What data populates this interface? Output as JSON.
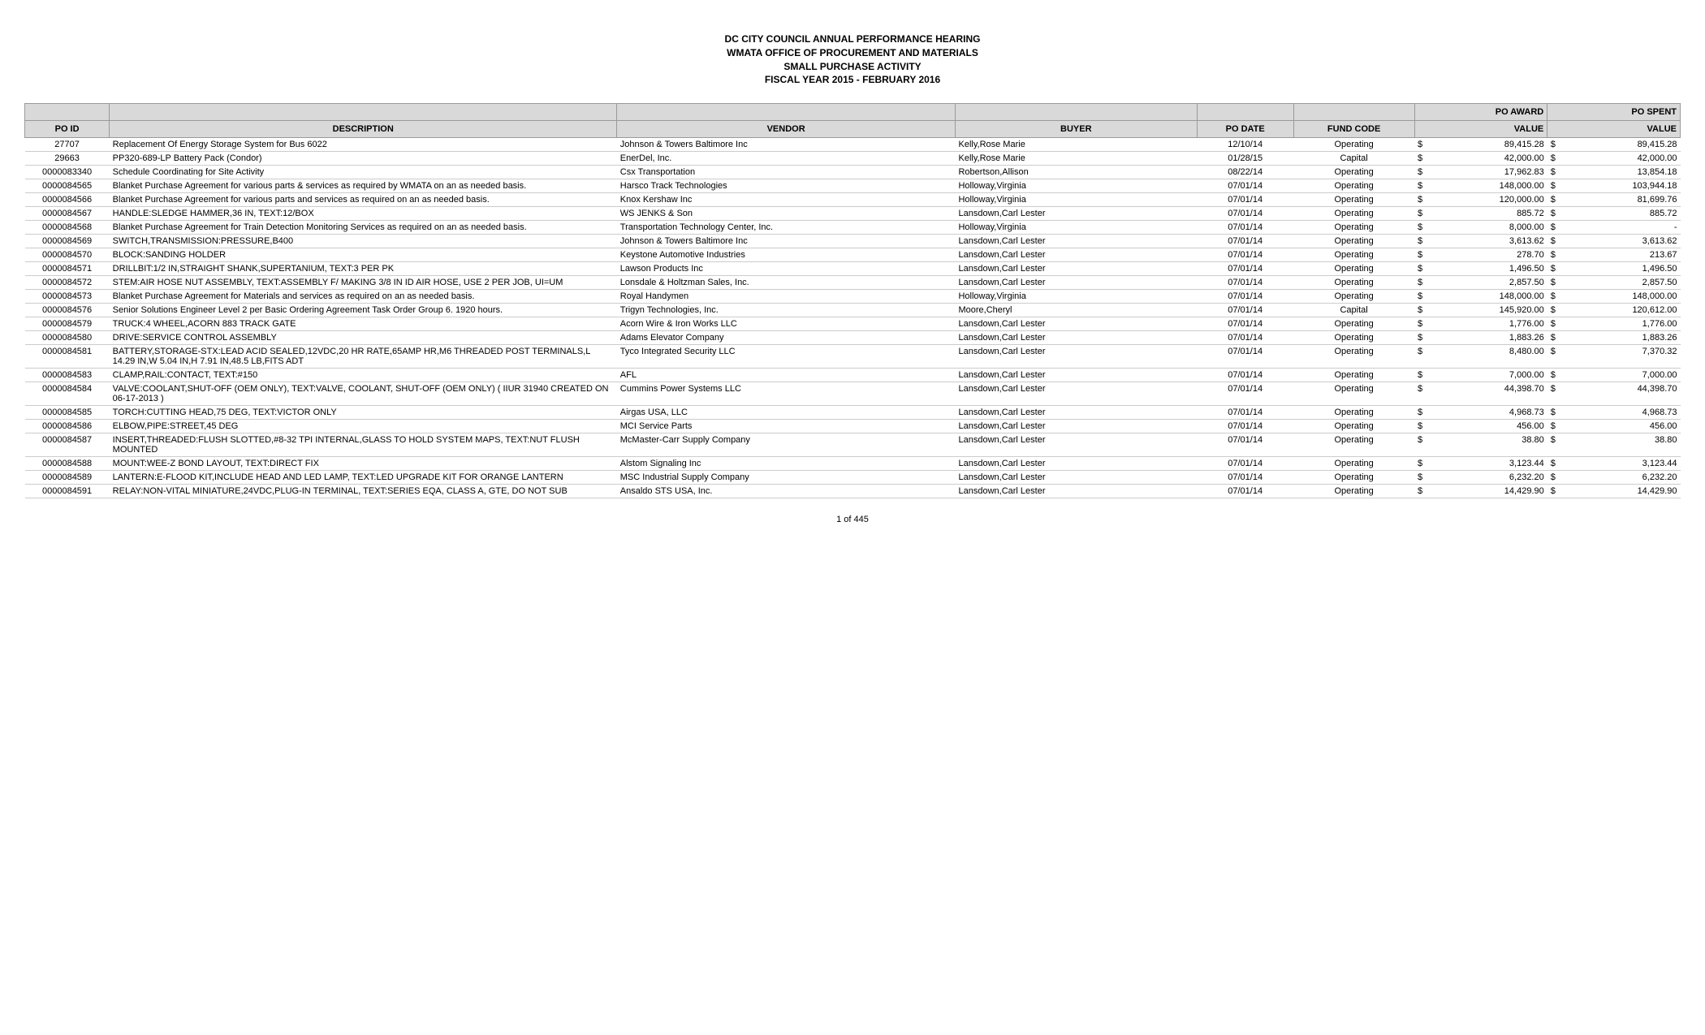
{
  "header": {
    "line1": "DC CITY COUNCIL ANNUAL PERFORMANCE HEARING",
    "line2": "WMATA OFFICE OF PROCUREMENT AND MATERIALS",
    "line3": "SMALL PURCHASE ACTIVITY",
    "line4": "FISCAL YEAR 2015 - FEBRUARY 2016"
  },
  "table": {
    "columns": [
      "PO ID",
      "DESCRIPTION",
      "VENDOR",
      "BUYER",
      "PO DATE",
      "FUND CODE",
      "PO AWARD VALUE",
      "PO SPENT VALUE"
    ],
    "head_top": [
      "",
      "",
      "",
      "",
      "",
      "",
      "PO AWARD",
      "PO SPENT"
    ],
    "head_bottom": [
      "PO ID",
      "DESCRIPTION",
      "VENDOR",
      "BUYER",
      "PO DATE",
      "FUND CODE",
      "VALUE",
      "VALUE"
    ],
    "rows": [
      {
        "poid": "27707",
        "desc": "Replacement Of Energy Storage System for Bus 6022",
        "vendor": "Johnson & Towers Baltimore Inc",
        "buyer": "Kelly,Rose Marie",
        "date": "12/10/14",
        "fund": "Operating",
        "award": "89,415.28",
        "spent": "89,415.28"
      },
      {
        "poid": "29663",
        "desc": "PP320-689-LP Battery Pack (Condor)",
        "vendor": "EnerDel, Inc.",
        "buyer": "Kelly,Rose Marie",
        "date": "01/28/15",
        "fund": "Capital",
        "award": "42,000.00",
        "spent": "42,000.00"
      },
      {
        "poid": "0000083340",
        "desc": "Schedule Coordinating for Site Activity",
        "vendor": "Csx Transportation",
        "buyer": "Robertson,Allison",
        "date": "08/22/14",
        "fund": "Operating",
        "award": "17,962.83",
        "spent": "13,854.18"
      },
      {
        "poid": "0000084565",
        "desc": "Blanket Purchase Agreement for various parts & services as required by WMATA on an as needed basis.",
        "vendor": "Harsco Track Technologies",
        "buyer": "Holloway,Virginia",
        "date": "07/01/14",
        "fund": "Operating",
        "award": "148,000.00",
        "spent": "103,944.18"
      },
      {
        "poid": "0000084566",
        "desc": "Blanket Purchase Agreement for various parts and services as required on an as needed basis.",
        "vendor": "Knox Kershaw Inc",
        "buyer": "Holloway,Virginia",
        "date": "07/01/14",
        "fund": "Operating",
        "award": "120,000.00",
        "spent": "81,699.76"
      },
      {
        "poid": "0000084567",
        "desc": "HANDLE:SLEDGE HAMMER,36 IN, TEXT:12/BOX",
        "vendor": "WS JENKS & Son",
        "buyer": "Lansdown,Carl Lester",
        "date": "07/01/14",
        "fund": "Operating",
        "award": "885.72",
        "spent": "885.72"
      },
      {
        "poid": "0000084568",
        "desc": "Blanket Purchase Agreement for Train Detection Monitoring Services as required on an as needed basis.",
        "vendor": "Transportation Technology Center, Inc.",
        "buyer": "Holloway,Virginia",
        "date": "07/01/14",
        "fund": "Operating",
        "award": "8,000.00",
        "spent": "-"
      },
      {
        "poid": "0000084569",
        "desc": "SWITCH,TRANSMISSION:PRESSURE,B400",
        "vendor": "Johnson & Towers Baltimore Inc",
        "buyer": "Lansdown,Carl Lester",
        "date": "07/01/14",
        "fund": "Operating",
        "award": "3,613.62",
        "spent": "3,613.62"
      },
      {
        "poid": "0000084570",
        "desc": "BLOCK:SANDING HOLDER",
        "vendor": "Keystone Automotive Industries",
        "buyer": "Lansdown,Carl Lester",
        "date": "07/01/14",
        "fund": "Operating",
        "award": "278.70",
        "spent": "213.67"
      },
      {
        "poid": "0000084571",
        "desc": "DRILLBIT:1/2 IN,STRAIGHT SHANK,SUPERTANIUM, TEXT:3 PER PK",
        "vendor": "Lawson Products Inc",
        "buyer": "Lansdown,Carl Lester",
        "date": "07/01/14",
        "fund": "Operating",
        "award": "1,496.50",
        "spent": "1,496.50"
      },
      {
        "poid": "0000084572",
        "desc": "STEM:AIR HOSE NUT ASSEMBLY, TEXT:ASSEMBLY F/ MAKING 3/8 IN ID AIR HOSE, USE 2 PER JOB, UI=UM",
        "vendor": "Lonsdale & Holtzman Sales, Inc.",
        "buyer": "Lansdown,Carl Lester",
        "date": "07/01/14",
        "fund": "Operating",
        "award": "2,857.50",
        "spent": "2,857.50"
      },
      {
        "poid": "0000084573",
        "desc": "Blanket Purchase Agreement for Materials and services as required on an as needed basis.",
        "vendor": "Royal Handymen",
        "buyer": "Holloway,Virginia",
        "date": "07/01/14",
        "fund": "Operating",
        "award": "148,000.00",
        "spent": "148,000.00"
      },
      {
        "poid": "0000084576",
        "desc": "Senior Solutions Engineer Level 2 per Basic Ordering Agreement Task Order Group 6.  1920 hours.",
        "vendor": "Trigyn Technologies, Inc.",
        "buyer": "Moore,Cheryl",
        "date": "07/01/14",
        "fund": "Capital",
        "award": "145,920.00",
        "spent": "120,612.00"
      },
      {
        "poid": "0000084579",
        "desc": "TRUCK:4 WHEEL,ACORN 883 TRACK GATE",
        "vendor": "Acorn Wire & Iron Works LLC",
        "buyer": "Lansdown,Carl Lester",
        "date": "07/01/14",
        "fund": "Operating",
        "award": "1,776.00",
        "spent": "1,776.00"
      },
      {
        "poid": "0000084580",
        "desc": "DRIVE:SERVICE CONTROL ASSEMBLY",
        "vendor": "Adams Elevator Company",
        "buyer": "Lansdown,Carl Lester",
        "date": "07/01/14",
        "fund": "Operating",
        "award": "1,883.26",
        "spent": "1,883.26"
      },
      {
        "poid": "0000084581",
        "desc": "BATTERY,STORAGE-STX:LEAD ACID SEALED,12VDC,20 HR RATE,65AMP HR,M6 THREADED POST TERMINALS,L 14.29 IN,W 5.04 IN,H 7.91 IN,48.5 LB,FITS ADT",
        "vendor": "Tyco Integrated Security LLC",
        "buyer": "Lansdown,Carl Lester",
        "date": "07/01/14",
        "fund": "Operating",
        "award": "8,480.00",
        "spent": "7,370.32"
      },
      {
        "poid": "0000084583",
        "desc": "CLAMP,RAIL:CONTACT, TEXT:#150",
        "vendor": "AFL",
        "buyer": "Lansdown,Carl Lester",
        "date": "07/01/14",
        "fund": "Operating",
        "award": "7,000.00",
        "spent": "7,000.00"
      },
      {
        "poid": "0000084584",
        "desc": "VALVE:COOLANT,SHUT-OFF (OEM ONLY), TEXT:VALVE, COOLANT, SHUT-OFF  (OEM ONLY)\n( IIUR 31940 CREATED ON 06-17-2013 )",
        "vendor": "Cummins Power Systems LLC",
        "buyer": "Lansdown,Carl Lester",
        "date": "07/01/14",
        "fund": "Operating",
        "award": "44,398.70",
        "spent": "44,398.70"
      },
      {
        "poid": "0000084585",
        "desc": "TORCH:CUTTING HEAD,75 DEG, TEXT:VICTOR ONLY",
        "vendor": "Airgas USA, LLC",
        "buyer": "Lansdown,Carl Lester",
        "date": "07/01/14",
        "fund": "Operating",
        "award": "4,968.73",
        "spent": "4,968.73"
      },
      {
        "poid": "0000084586",
        "desc": "ELBOW,PIPE:STREET,45 DEG",
        "vendor": "MCI Service Parts",
        "buyer": "Lansdown,Carl Lester",
        "date": "07/01/14",
        "fund": "Operating",
        "award": "456.00",
        "spent": "456.00"
      },
      {
        "poid": "0000084587",
        "desc": "INSERT,THREADED:FLUSH SLOTTED,#8-32 TPI INTERNAL,GLASS TO HOLD SYSTEM MAPS, TEXT:NUT FLUSH MOUNTED",
        "vendor": "McMaster-Carr Supply Company",
        "buyer": "Lansdown,Carl Lester",
        "date": "07/01/14",
        "fund": "Operating",
        "award": "38.80",
        "spent": "38.80"
      },
      {
        "poid": "0000084588",
        "desc": "MOUNT:WEE-Z BOND LAYOUT, TEXT:DIRECT FIX",
        "vendor": "Alstom Signaling Inc",
        "buyer": "Lansdown,Carl Lester",
        "date": "07/01/14",
        "fund": "Operating",
        "award": "3,123.44",
        "spent": "3,123.44"
      },
      {
        "poid": "0000084589",
        "desc": "LANTERN:E-FLOOD KIT,INCLUDE HEAD AND LED LAMP, TEXT:LED UPGRADE KIT FOR ORANGE LANTERN",
        "vendor": "MSC Industrial Supply Company",
        "buyer": "Lansdown,Carl Lester",
        "date": "07/01/14",
        "fund": "Operating",
        "award": "6,232.20",
        "spent": "6,232.20"
      },
      {
        "poid": "0000084591",
        "desc": "RELAY:NON-VITAL MINIATURE,24VDC,PLUG-IN TERMINAL, TEXT:SERIES EQA, CLASS A, GTE, DO NOT SUB",
        "vendor": "Ansaldo STS USA, Inc.",
        "buyer": "Lansdown,Carl Lester",
        "date": "07/01/14",
        "fund": "Operating",
        "award": "14,429.90",
        "spent": "14,429.90"
      }
    ]
  },
  "styling": {
    "header_bg": "#d9d9d9",
    "font_size": 11,
    "header_font_size": 12
  },
  "footer": {
    "page": "1 of 445"
  }
}
